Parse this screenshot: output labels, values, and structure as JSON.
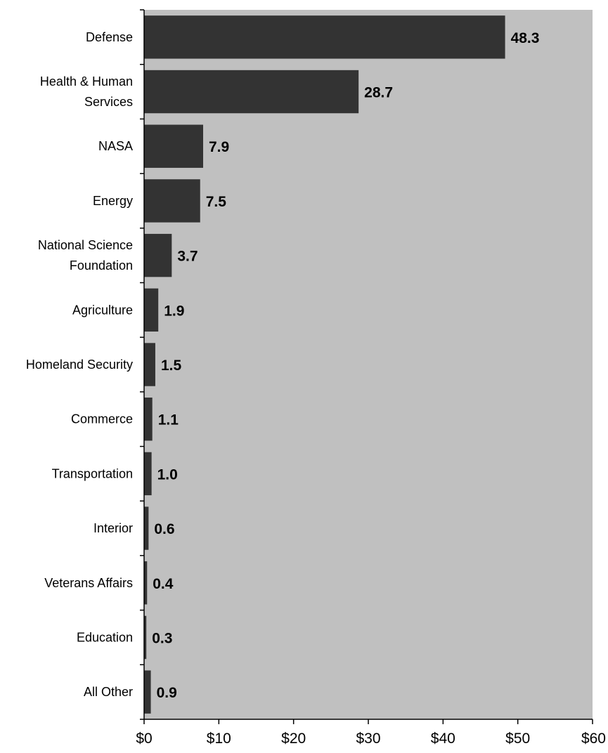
{
  "chart_data": {
    "type": "bar",
    "orientation": "horizontal",
    "categories": [
      [
        "Defense"
      ],
      [
        "Health & Human",
        "Services"
      ],
      [
        "NASA"
      ],
      [
        "Energy"
      ],
      [
        "National Science",
        "Foundation"
      ],
      [
        "Agriculture"
      ],
      [
        "Homeland Security"
      ],
      [
        "Commerce"
      ],
      [
        "Transportation"
      ],
      [
        "Interior"
      ],
      [
        "Veterans Affairs"
      ],
      [
        "Education"
      ],
      [
        "All Other"
      ]
    ],
    "values": [
      48.3,
      28.7,
      7.9,
      7.5,
      3.7,
      1.9,
      1.5,
      1.1,
      1.0,
      0.6,
      0.4,
      0.3,
      0.9
    ],
    "value_labels": [
      "48.3",
      "28.7",
      "7.9",
      "7.5",
      "3.7",
      "1.9",
      "1.5",
      "1.1",
      "1.0",
      "0.6",
      "0.4",
      "0.3",
      "0.9"
    ],
    "x_ticks": [
      0,
      10,
      20,
      30,
      40,
      50,
      60
    ],
    "x_tick_labels": [
      "$0",
      "$10",
      "$20",
      "$30",
      "$40",
      "$50",
      "$60"
    ],
    "xlim": [
      0,
      60
    ],
    "title": "",
    "xlabel": "",
    "ylabel": "",
    "grid": false,
    "colors": {
      "plot_background": "#c0c0c0",
      "bar": "#333333",
      "axis": "#000000"
    }
  }
}
